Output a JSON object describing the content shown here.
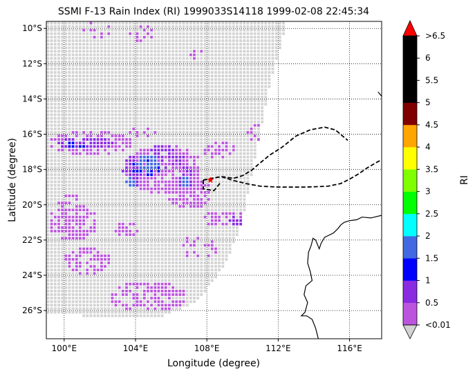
{
  "title": "SSMI F-13 Rain Index (RI) 1999033S14118 1999-02-08 22:45:34",
  "xlabel": "Longitude (degree)",
  "ylabel": "Latitude (degree)",
  "colorbar_label": "RI",
  "chart_data": {
    "type": "heatmap",
    "xlim": [
      99.0,
      117.8
    ],
    "ylim": [
      -27.6,
      -9.6
    ],
    "x_ticks": [
      {
        "value": 100,
        "label": "100°E"
      },
      {
        "value": 104,
        "label": "104°E"
      },
      {
        "value": 108,
        "label": "108°E"
      },
      {
        "value": 112,
        "label": "112°E"
      },
      {
        "value": 116,
        "label": "116°E"
      }
    ],
    "y_ticks": [
      {
        "value": -10,
        "label": "10°S"
      },
      {
        "value": -12,
        "label": "12°S"
      },
      {
        "value": -14,
        "label": "14°S"
      },
      {
        "value": -16,
        "label": "16°S"
      },
      {
        "value": -18,
        "label": "18°S"
      },
      {
        "value": -20,
        "label": "20°S"
      },
      {
        "value": -22,
        "label": "22°S"
      },
      {
        "value": -24,
        "label": "24°S"
      },
      {
        "value": -26,
        "label": "26°S"
      }
    ],
    "grid": "dotted",
    "colorbar": {
      "bins": [
        {
          "color": "#bb55dd"
        },
        {
          "color": "#8a2be2"
        },
        {
          "color": "#0000ff"
        },
        {
          "color": "#4169e1"
        },
        {
          "color": "#00ffff"
        },
        {
          "color": "#00ff00"
        },
        {
          "color": "#7fff00"
        },
        {
          "color": "#ffff00"
        },
        {
          "color": "#ffa500"
        },
        {
          "color": "#800000"
        },
        {
          "color": "#000000"
        },
        {
          "color": "#000000"
        },
        {
          "color": "#000000"
        }
      ],
      "under_color": "#d3d3d3",
      "over_color": "#ff0000",
      "tick_labels": [
        "<0.01",
        "0.5",
        "1",
        "1.5",
        "2",
        "2.5",
        "3",
        "3.5",
        "4",
        "4.5",
        "5",
        "5.5",
        "6",
        ">6.5"
      ]
    },
    "swath": {
      "no_rain_color": "#d3d3d3",
      "boundary": [
        [
          99.0,
          -9.6
        ],
        [
          112.5,
          -9.6
        ],
        [
          111.6,
          -13.0
        ],
        [
          110.8,
          -17.0
        ],
        [
          110.0,
          -21.0
        ],
        [
          109.0,
          -23.5
        ],
        [
          107.5,
          -25.5
        ],
        [
          105.0,
          -26.5
        ],
        [
          102.0,
          -26.4
        ],
        [
          99.0,
          -26.1
        ]
      ],
      "rain_regions": [
        {
          "category": 1,
          "cx": 100.5,
          "cy": -21.0,
          "rx": 1.4,
          "ry": 1.0,
          "density": 0.75
        },
        {
          "category": 1,
          "cx": 101.3,
          "cy": -23.2,
          "rx": 1.4,
          "ry": 0.8,
          "density": 0.55
        },
        {
          "category": 1,
          "cx": 104.7,
          "cy": -25.2,
          "rx": 2.2,
          "ry": 0.9,
          "density": 0.65
        },
        {
          "category": 1,
          "cx": 103.5,
          "cy": -21.4,
          "rx": 0.7,
          "ry": 0.5,
          "density": 0.7
        },
        {
          "category": 1,
          "cx": 101.5,
          "cy": -16.5,
          "rx": 2.3,
          "ry": 0.7,
          "density": 0.7
        },
        {
          "category": 1,
          "cx": 105.6,
          "cy": -18.0,
          "rx": 2.2,
          "ry": 1.4,
          "density": 0.8
        },
        {
          "category": 1,
          "cx": 107.0,
          "cy": -19.3,
          "rx": 1.3,
          "ry": 1.0,
          "density": 0.75
        },
        {
          "category": 1,
          "cx": 109.0,
          "cy": -20.8,
          "rx": 1.3,
          "ry": 0.45,
          "density": 0.7
        },
        {
          "category": 1,
          "cx": 108.7,
          "cy": -16.9,
          "rx": 0.9,
          "ry": 0.5,
          "density": 0.55
        },
        {
          "category": 1,
          "cx": 110.8,
          "cy": -15.9,
          "rx": 0.5,
          "ry": 0.5,
          "density": 0.45
        },
        {
          "category": 1,
          "cx": 107.6,
          "cy": -22.4,
          "rx": 1.1,
          "ry": 0.7,
          "density": 0.35
        },
        {
          "category": 1,
          "cx": 100.2,
          "cy": -19.7,
          "rx": 0.6,
          "ry": 0.4,
          "density": 0.5
        },
        {
          "category": 1,
          "cx": 101.9,
          "cy": -10.1,
          "rx": 0.9,
          "ry": 0.5,
          "density": 0.3
        },
        {
          "category": 1,
          "cx": 104.4,
          "cy": -10.3,
          "rx": 0.7,
          "ry": 0.5,
          "density": 0.3
        },
        {
          "category": 1,
          "cx": 107.5,
          "cy": -11.6,
          "rx": 0.5,
          "ry": 0.4,
          "density": 0.35
        },
        {
          "category": 1,
          "cx": 104.3,
          "cy": -15.9,
          "rx": 1.0,
          "ry": 0.3,
          "density": 0.4
        },
        {
          "category": 2,
          "cx": 101.2,
          "cy": -16.5,
          "rx": 1.6,
          "ry": 0.4,
          "density": 0.75
        },
        {
          "category": 2,
          "cx": 103.9,
          "cy": -18.1,
          "rx": 0.6,
          "ry": 0.9,
          "density": 0.7
        },
        {
          "category": 2,
          "cx": 105.6,
          "cy": -17.3,
          "rx": 1.2,
          "ry": 0.7,
          "density": 0.6
        },
        {
          "category": 2,
          "cx": 106.8,
          "cy": -18.4,
          "rx": 0.5,
          "ry": 0.7,
          "density": 0.75
        },
        {
          "category": 2,
          "cx": 109.8,
          "cy": -20.9,
          "rx": 0.6,
          "ry": 0.3,
          "density": 0.8
        },
        {
          "category": 3,
          "cx": 104.6,
          "cy": -17.9,
          "rx": 0.8,
          "ry": 0.5,
          "density": 0.6
        },
        {
          "category": 3,
          "cx": 100.8,
          "cy": -16.6,
          "rx": 0.7,
          "ry": 0.25,
          "density": 0.5
        },
        {
          "category": 4,
          "cx": 104.7,
          "cy": -17.6,
          "rx": 0.7,
          "ry": 0.5,
          "density": 0.9
        },
        {
          "category": 4,
          "cx": 103.8,
          "cy": -18.7,
          "rx": 0.3,
          "ry": 0.4,
          "density": 0.8
        },
        {
          "category": 4,
          "cx": 106.8,
          "cy": -18.7,
          "rx": 0.2,
          "ry": 0.3,
          "density": 0.8
        }
      ]
    },
    "track_northern": [
      [
        107.8,
        -18.6
      ],
      [
        108.8,
        -18.4
      ],
      [
        109.5,
        -18.5
      ],
      [
        110.0,
        -18.35
      ],
      [
        110.5,
        -18.05
      ],
      [
        110.9,
        -17.7
      ],
      [
        111.5,
        -17.2
      ],
      [
        112.2,
        -16.75
      ],
      [
        113.0,
        -16.1
      ],
      [
        113.8,
        -15.75
      ],
      [
        114.6,
        -15.6
      ],
      [
        115.2,
        -15.75
      ],
      [
        115.9,
        -16.35
      ]
    ],
    "track_eastern": [
      [
        107.8,
        -18.6
      ],
      [
        108.8,
        -18.4
      ],
      [
        109.4,
        -18.6
      ],
      [
        110.2,
        -18.8
      ],
      [
        111.0,
        -18.95
      ],
      [
        112.0,
        -19.0
      ],
      [
        113.5,
        -19.0
      ],
      [
        114.8,
        -18.95
      ],
      [
        115.5,
        -18.8
      ],
      [
        116.0,
        -18.55
      ],
      [
        116.5,
        -18.25
      ],
      [
        117.0,
        -17.9
      ],
      [
        117.6,
        -17.55
      ],
      [
        117.8,
        -17.45
      ]
    ],
    "track_stub": [
      [
        107.8,
        -18.6
      ],
      [
        107.8,
        -19.1
      ],
      [
        108.4,
        -19.2
      ],
      [
        108.8,
        -18.7
      ]
    ],
    "storm_marker": [
      108.2,
      -18.6
    ],
    "coastline": [
      [
        [
          117.8,
          -20.6
        ],
        [
          117.2,
          -20.75
        ],
        [
          116.7,
          -20.7
        ],
        [
          116.4,
          -20.85
        ],
        [
          116.0,
          -20.9
        ],
        [
          115.7,
          -21.0
        ],
        [
          115.5,
          -21.15
        ],
        [
          115.35,
          -21.35
        ],
        [
          115.1,
          -21.6
        ],
        [
          114.8,
          -21.75
        ],
        [
          114.6,
          -21.85
        ],
        [
          114.4,
          -22.2
        ],
        [
          114.3,
          -22.5
        ],
        [
          114.1,
          -22.0
        ],
        [
          113.95,
          -21.9
        ],
        [
          113.85,
          -22.3
        ],
        [
          113.7,
          -22.7
        ],
        [
          113.65,
          -23.3
        ],
        [
          113.8,
          -23.8
        ],
        [
          113.9,
          -24.3
        ],
        [
          113.55,
          -24.6
        ],
        [
          113.45,
          -25.1
        ],
        [
          113.65,
          -25.55
        ],
        [
          113.5,
          -26.1
        ],
        [
          113.3,
          -26.3
        ],
        [
          113.6,
          -26.3
        ],
        [
          113.9,
          -26.5
        ],
        [
          114.1,
          -27.0
        ],
        [
          114.25,
          -27.6
        ]
      ],
      [
        [
          117.6,
          -13.6
        ],
        [
          117.8,
          -13.85
        ]
      ]
    ]
  }
}
